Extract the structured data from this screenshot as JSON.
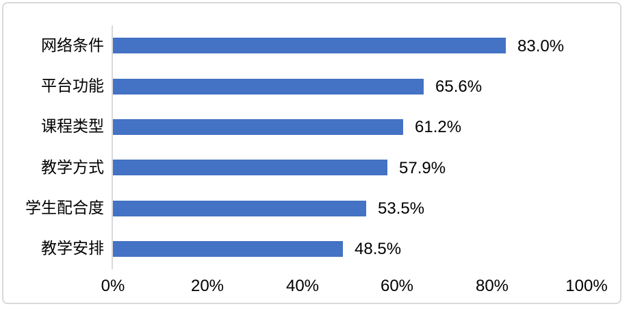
{
  "chart_data": {
    "type": "bar",
    "orientation": "horizontal",
    "title": "",
    "xlabel": "",
    "ylabel": "",
    "categories": [
      "网络条件",
      "平台功能",
      "课程类型",
      "教学方式",
      "学生配合度",
      "教学安排"
    ],
    "values": [
      83.0,
      65.6,
      61.2,
      57.9,
      53.5,
      48.5
    ],
    "data_labels": [
      "83.0%",
      "65.6%",
      "61.2%",
      "57.9%",
      "53.5%",
      "48.5%"
    ],
    "x_tick_labels": [
      "0%",
      "20%",
      "40%",
      "60%",
      "80%",
      "100%"
    ],
    "x_tick_values": [
      0,
      20,
      40,
      60,
      80,
      100
    ],
    "xlim": [
      0,
      100
    ],
    "grid": false,
    "legend": false,
    "data_labels_shown": true,
    "bar_color": "#4472C4",
    "axis_line_color": "#D9D9D9",
    "frame_border_color": "#D9D9D9",
    "text_color": "#000000",
    "background_color": "#FFFFFF"
  }
}
